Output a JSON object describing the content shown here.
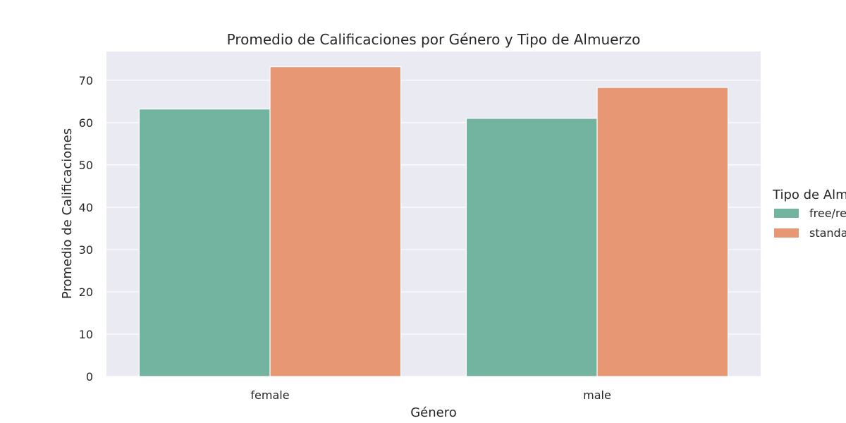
{
  "chart_data": {
    "type": "bar",
    "title": "Promedio de Calificaciones por Género y Tipo de Almuerzo",
    "xlabel": "Género",
    "ylabel": "Promedio de Calificaciones",
    "categories": [
      "female",
      "male"
    ],
    "series": [
      {
        "name": "free/reduced",
        "values": [
          63.2,
          61.0
        ],
        "color": "#73b4a0"
      },
      {
        "name": "standard",
        "values": [
          73.2,
          68.3
        ],
        "color": "#e89774"
      }
    ],
    "ylim": [
      0,
      76.8
    ],
    "yticks": [
      0,
      10,
      20,
      30,
      40,
      50,
      60,
      70
    ],
    "grid": true,
    "legend": {
      "title": "Tipo de Almuerzo",
      "placement": "right"
    },
    "colors": {
      "plot_bg": "#eaeaf2",
      "grid": "#ffffff"
    }
  }
}
